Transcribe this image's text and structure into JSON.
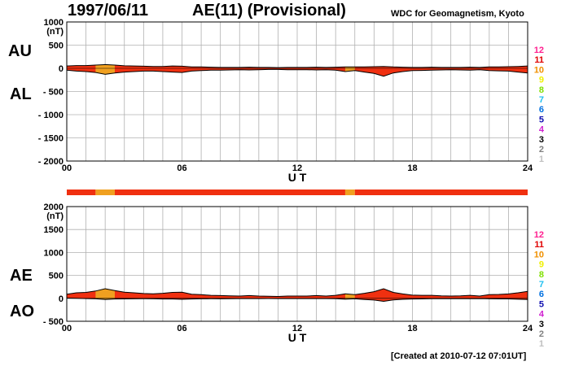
{
  "header": {
    "date": "1997/06/11",
    "title": "AE(11) (Provisional)",
    "source": "WDC for Geomagnetism, Kyoto"
  },
  "footer": {
    "created": "[Created at 2010-07-12 07:01UT]"
  },
  "colors": {
    "fill_main": "#f03010",
    "fill_alt": "#f0a020",
    "outline": "#000000",
    "grid": "#b0b0b0"
  },
  "legend": {
    "levels": [
      "12",
      "11",
      "10",
      "9",
      "8",
      "7",
      "6",
      "5",
      "4",
      "3",
      "2",
      "1"
    ],
    "colors": [
      "#ff2090",
      "#e00000",
      "#f09000",
      "#f0f000",
      "#80e000",
      "#20c0f0",
      "#0070e0",
      "#1010b0",
      "#d020d0",
      "#000000",
      "#808080",
      "#c0c0c0"
    ]
  },
  "chart_data": [
    {
      "type": "area",
      "name": "AU/AL",
      "side_labels": [
        "AU",
        "AL"
      ],
      "yunit": "(nT)",
      "ylim": [
        -2000,
        1000
      ],
      "yticks": [
        1000,
        500,
        0,
        -500,
        -1000,
        -1500,
        -2000
      ],
      "ytick_labels": [
        "1000",
        "500",
        "0",
        "- 500",
        "- 1000",
        "- 1500",
        "- 2000"
      ],
      "xlim": [
        0,
        24
      ],
      "xticks": [
        0,
        6,
        12,
        18,
        24
      ],
      "xtick_labels": [
        "00",
        "06",
        "12",
        "18",
        "24"
      ],
      "xlabel": "U T",
      "grid": true,
      "x": [
        0,
        0.5,
        1,
        1.5,
        2,
        2.5,
        3,
        3.5,
        4,
        4.5,
        5,
        5.5,
        6,
        6.5,
        7,
        7.5,
        8,
        8.5,
        9,
        9.5,
        10,
        10.5,
        11,
        11.5,
        12,
        12.5,
        13,
        13.5,
        14,
        14.5,
        15,
        15.5,
        16,
        16.5,
        17,
        17.5,
        18,
        18.5,
        19,
        19.5,
        20,
        20.5,
        21,
        21.5,
        22,
        22.5,
        23,
        23.5,
        24
      ],
      "series": [
        {
          "values": [
            50,
            60,
            60,
            70,
            80,
            70,
            55,
            50,
            45,
            40,
            40,
            50,
            45,
            30,
            30,
            25,
            20,
            20,
            20,
            25,
            20,
            20,
            15,
            20,
            20,
            20,
            25,
            20,
            25,
            30,
            30,
            30,
            35,
            40,
            30,
            25,
            20,
            20,
            25,
            20,
            20,
            20,
            25,
            20,
            30,
            30,
            35,
            40,
            50
          ]
        },
        {
          "values": [
            -40,
            -60,
            -70,
            -90,
            -130,
            -100,
            -80,
            -70,
            -60,
            -60,
            -70,
            -80,
            -90,
            -60,
            -50,
            -40,
            -40,
            -35,
            -30,
            -35,
            -30,
            -25,
            -25,
            -30,
            -30,
            -30,
            -35,
            -30,
            -40,
            -70,
            -50,
            -80,
            -110,
            -170,
            -100,
            -70,
            -50,
            -45,
            -40,
            -35,
            -30,
            -35,
            -40,
            -30,
            -50,
            -55,
            -60,
            -80,
            -100
          ]
        }
      ]
    },
    {
      "type": "area",
      "name": "AE/AO",
      "side_labels": [
        "AE",
        "AO"
      ],
      "yunit": "(nT)",
      "ylim": [
        -500,
        2000
      ],
      "yticks": [
        2000,
        1500,
        1000,
        500,
        0,
        -500
      ],
      "ytick_labels": [
        "2000",
        "1500",
        "1000",
        "500",
        "0",
        "- 500"
      ],
      "xlim": [
        0,
        24
      ],
      "xticks": [
        0,
        6,
        12,
        18,
        24
      ],
      "xtick_labels": [
        "00",
        "06",
        "12",
        "18",
        "24"
      ],
      "xlabel": "U T",
      "grid": true,
      "x": [
        0,
        0.5,
        1,
        1.5,
        2,
        2.5,
        3,
        3.5,
        4,
        4.5,
        5,
        5.5,
        6,
        6.5,
        7,
        7.5,
        8,
        8.5,
        9,
        9.5,
        10,
        10.5,
        11,
        11.5,
        12,
        12.5,
        13,
        13.5,
        14,
        14.5,
        15,
        15.5,
        16,
        16.5,
        17,
        17.5,
        18,
        18.5,
        19,
        19.5,
        20,
        20.5,
        21,
        21.5,
        22,
        22.5,
        23,
        23.5,
        24
      ],
      "series": [
        {
          "values": [
            90,
            120,
            130,
            160,
            210,
            170,
            135,
            120,
            105,
            100,
            110,
            130,
            135,
            90,
            80,
            65,
            60,
            55,
            50,
            60,
            50,
            45,
            40,
            50,
            50,
            50,
            60,
            50,
            65,
            100,
            80,
            110,
            145,
            210,
            130,
            95,
            70,
            65,
            65,
            55,
            50,
            55,
            65,
            50,
            80,
            85,
            95,
            120,
            150
          ]
        },
        {
          "values": [
            5,
            0,
            -5,
            -10,
            -25,
            -15,
            -12,
            -10,
            -8,
            -10,
            -15,
            -15,
            -22,
            -15,
            -10,
            -8,
            -10,
            -8,
            -5,
            -5,
            -5,
            -3,
            -5,
            -5,
            -5,
            -5,
            -5,
            -5,
            -8,
            -20,
            -10,
            -25,
            -38,
            -65,
            -35,
            -22,
            -15,
            -12,
            -8,
            -8,
            -5,
            -8,
            -8,
            -5,
            -10,
            -12,
            -12,
            -20,
            -25
          ]
        }
      ]
    }
  ],
  "status_bar": {
    "xlim": [
      0,
      24
    ],
    "segments": [
      {
        "start": 0,
        "end": 1.5,
        "color": "#f03010"
      },
      {
        "start": 1.5,
        "end": 2.5,
        "color": "#f0a020"
      },
      {
        "start": 2.5,
        "end": 14.5,
        "color": "#f03010"
      },
      {
        "start": 14.5,
        "end": 15,
        "color": "#f0a020"
      },
      {
        "start": 15,
        "end": 24,
        "color": "#f03010"
      }
    ]
  }
}
